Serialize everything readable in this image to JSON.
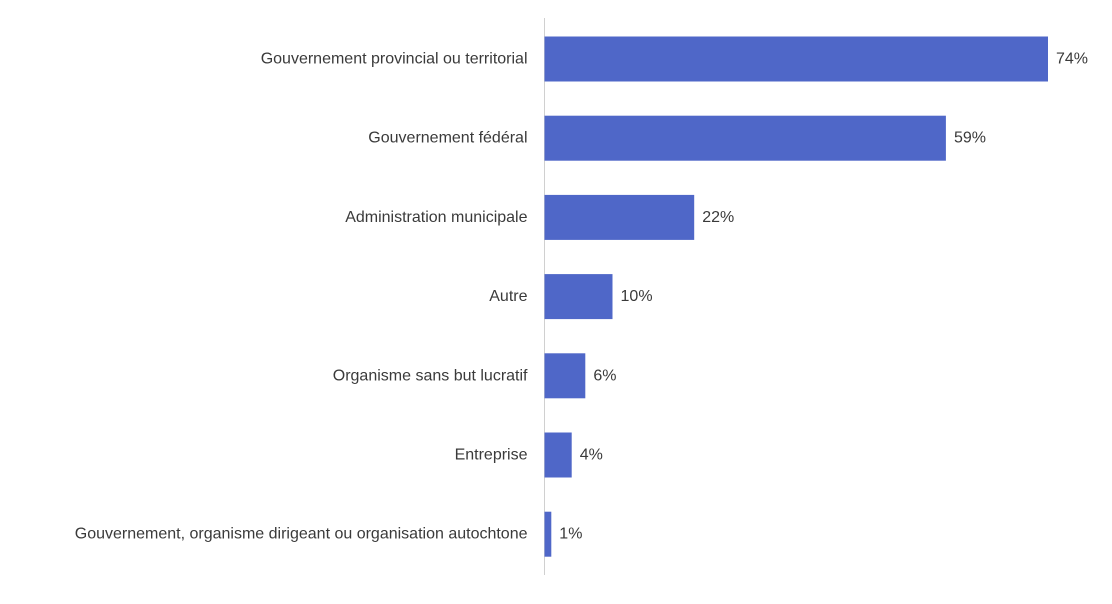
{
  "chart_data": {
    "type": "bar",
    "orientation": "horizontal",
    "title": "",
    "xlabel": "",
    "ylabel": "",
    "categories": [
      "Gouvernement provincial ou territorial",
      "Gouvernement fédéral",
      "Administration municipale",
      "Autre",
      "Organisme sans but lucratif",
      "Entreprise",
      "Gouvernement, organisme dirigeant ou organisation autochtone"
    ],
    "values": [
      74,
      59,
      22,
      10,
      6,
      4,
      1
    ],
    "value_labels": [
      "74%",
      "59%",
      "22%",
      "10%",
      "6%",
      "4%",
      "1%"
    ],
    "xlim": [
      0,
      74
    ],
    "grid": false,
    "legend": "none",
    "bar_color": "#4f67c8",
    "axis_color": "#d0d0d0"
  }
}
